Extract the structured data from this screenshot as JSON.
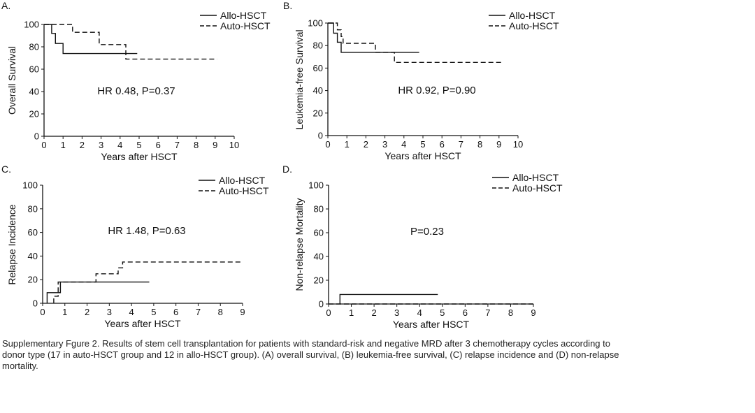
{
  "caption": "Supplementary Fgure 2. Results of stem cell transplantation for patients with standard-risk and negative MRD after 3 chemotherapy cycles according to donor type (17 in auto-HSCT group and 12 in allo-HSCT group). (A) overall survival, (B) leukemia-free survival, (C) relapse incidence and (D) non-relapse mortality.",
  "chart_data": [
    {
      "type": "line",
      "panel": "A.",
      "ylabel": "Overall Survival",
      "xlabel": "Years after HSCT",
      "annotation": "HR 0.48, P=0.37",
      "xlim": [
        0,
        10
      ],
      "ylim": [
        0,
        100
      ],
      "xticks": [
        "0",
        "1",
        "2",
        "3",
        "4",
        "5",
        "6",
        "7",
        "8",
        "9",
        "10"
      ],
      "yticks": [
        "0",
        "20",
        "40",
        "60",
        "80",
        "100"
      ],
      "legend_position": "top-right",
      "series": [
        {
          "name": "Allo-HSCT",
          "style": "solid",
          "x": [
            0,
            0.4,
            0.4,
            0.6,
            0.6,
            1.0,
            1.0,
            4.9
          ],
          "y": [
            100,
            100,
            92,
            92,
            83,
            83,
            74,
            74
          ]
        },
        {
          "name": "Auto-HSCT",
          "style": "dashed",
          "x": [
            0,
            1.5,
            1.5,
            2.9,
            2.9,
            4.3,
            4.3,
            9.1
          ],
          "y": [
            100,
            100,
            93,
            93,
            82,
            82,
            69,
            69
          ]
        }
      ]
    },
    {
      "type": "line",
      "panel": "B.",
      "ylabel": "Leukemia-free Survival",
      "xlabel": "Years after HSCT",
      "annotation": "HR 0.92, P=0.90",
      "xlim": [
        0,
        10
      ],
      "ylim": [
        0,
        100
      ],
      "xticks": [
        "0",
        "1",
        "2",
        "3",
        "4",
        "5",
        "6",
        "7",
        "8",
        "9",
        "10"
      ],
      "yticks": [
        "0",
        "20",
        "40",
        "60",
        "80",
        "100"
      ],
      "legend_position": "top-right",
      "series": [
        {
          "name": "Allo-HSCT",
          "style": "solid",
          "x": [
            0,
            0.3,
            0.3,
            0.5,
            0.5,
            0.7,
            0.7,
            4.8
          ],
          "y": [
            100,
            100,
            91,
            91,
            83,
            83,
            74,
            74
          ]
        },
        {
          "name": "Auto-HSCT",
          "style": "dashed",
          "x": [
            0,
            0.5,
            0.5,
            0.7,
            0.7,
            0.8,
            0.8,
            2.5,
            2.5,
            3.5,
            3.5,
            9.2
          ],
          "y": [
            100,
            100,
            94,
            94,
            88,
            88,
            82,
            82,
            74,
            74,
            65,
            65
          ]
        }
      ]
    },
    {
      "type": "line",
      "panel": "C.",
      "ylabel": "Relapse Incidence",
      "xlabel": "Years after HSCT",
      "annotation": "HR 1.48, P=0.63",
      "xlim": [
        0,
        9
      ],
      "ylim": [
        0,
        100
      ],
      "xticks": [
        "0",
        "1",
        "2",
        "3",
        "4",
        "5",
        "6",
        "7",
        "8",
        "9"
      ],
      "yticks": [
        "0",
        "20",
        "40",
        "60",
        "80",
        "100"
      ],
      "legend_position": "top-right",
      "series": [
        {
          "name": "Allo-HSCT",
          "style": "solid",
          "x": [
            0.2,
            0.2,
            0.8,
            0.8,
            4.8
          ],
          "y": [
            0,
            9,
            9,
            18,
            18
          ]
        },
        {
          "name": "Auto-HSCT",
          "style": "dashed",
          "x": [
            0.5,
            0.5,
            0.7,
            0.7,
            2.4,
            2.4,
            3.4,
            3.4,
            3.6,
            3.6,
            9.0
          ],
          "y": [
            0,
            6,
            6,
            18,
            18,
            25,
            25,
            30,
            30,
            35,
            35
          ]
        }
      ]
    },
    {
      "type": "line",
      "panel": "D.",
      "ylabel": "Non-relapse Mortality",
      "xlabel": "Years after HSCT",
      "annotation": "P=0.23",
      "xlim": [
        0,
        9
      ],
      "ylim": [
        0,
        100
      ],
      "xticks": [
        "0",
        "1",
        "2",
        "3",
        "4",
        "5",
        "6",
        "7",
        "8",
        "9"
      ],
      "yticks": [
        "0",
        "20",
        "40",
        "60",
        "80",
        "100"
      ],
      "legend_position": "top-right",
      "series": [
        {
          "name": "Allo-HSCT",
          "style": "solid",
          "x": [
            0.5,
            0.5,
            4.8
          ],
          "y": [
            0,
            8,
            8
          ]
        },
        {
          "name": "Auto-HSCT",
          "style": "dashed",
          "x": [
            0,
            9
          ],
          "y": [
            0,
            0
          ]
        }
      ]
    }
  ]
}
